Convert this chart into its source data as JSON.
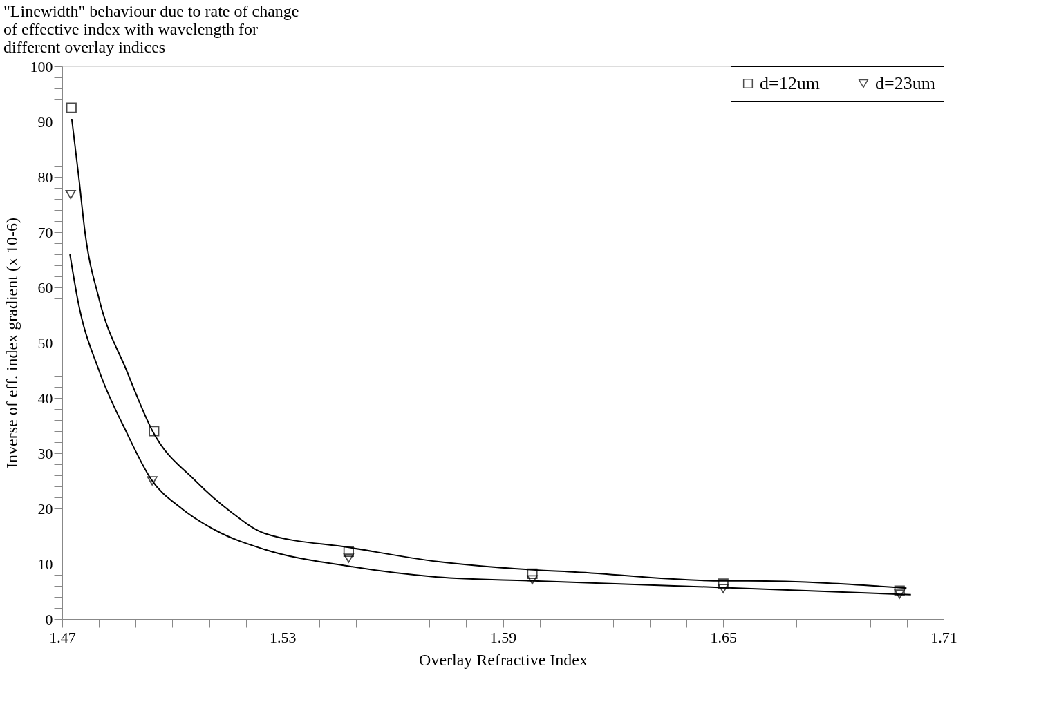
{
  "chart_data": {
    "type": "scatter",
    "title": [
      "\"Linewidth\" behaviour due to rate of change",
      "of effective index with wavelength for",
      "different overlay indices"
    ],
    "xlabel": "Overlay Refractive Index",
    "ylabel": "Inverse of eff. index gradient (x 10-6)",
    "xlim": [
      1.47,
      1.71
    ],
    "xticks": [
      1.47,
      {
        "value": 1.48,
        "label": null
      },
      {
        "value": 1.49,
        "label": null
      },
      {
        "value": 1.5,
        "label": null
      },
      {
        "value": 1.51,
        "label": null
      },
      {
        "value": 1.52,
        "label": null
      },
      1.53,
      {
        "value": 1.54,
        "label": null
      },
      {
        "value": 1.55,
        "label": null
      },
      {
        "value": 1.56,
        "label": null
      },
      {
        "value": 1.57,
        "label": null
      },
      {
        "value": 1.58,
        "label": null
      },
      1.59,
      {
        "value": 1.6,
        "label": null
      },
      {
        "value": 1.61,
        "label": null
      },
      {
        "value": 1.62,
        "label": null
      },
      {
        "value": 1.63,
        "label": null
      },
      {
        "value": 1.64,
        "label": null
      },
      1.65,
      {
        "value": 1.66,
        "label": null
      },
      {
        "value": 1.67,
        "label": null
      },
      {
        "value": 1.68,
        "label": null
      },
      {
        "value": 1.69,
        "label": null
      },
      {
        "value": 1.7,
        "label": null
      },
      1.71
    ],
    "ylim": [
      0,
      100
    ],
    "yticks": [
      0,
      {
        "value": 2,
        "label": null
      },
      {
        "value": 4,
        "label": null
      },
      {
        "value": 6,
        "label": null
      },
      {
        "value": 8,
        "label": null
      },
      10,
      {
        "value": 12,
        "label": null
      },
      {
        "value": 14,
        "label": null
      },
      {
        "value": 16,
        "label": null
      },
      {
        "value": 18,
        "label": null
      },
      20,
      {
        "value": 22,
        "label": null
      },
      {
        "value": 24,
        "label": null
      },
      {
        "value": 26,
        "label": null
      },
      {
        "value": 28,
        "label": null
      },
      30,
      {
        "value": 32,
        "label": null
      },
      {
        "value": 34,
        "label": null
      },
      {
        "value": 36,
        "label": null
      },
      {
        "value": 38,
        "label": null
      },
      40,
      {
        "value": 42,
        "label": null
      },
      {
        "value": 44,
        "label": null
      },
      {
        "value": 46,
        "label": null
      },
      {
        "value": 48,
        "label": null
      },
      50,
      {
        "value": 52,
        "label": null
      },
      {
        "value": 54,
        "label": null
      },
      {
        "value": 56,
        "label": null
      },
      {
        "value": 58,
        "label": null
      },
      60,
      {
        "value": 62,
        "label": null
      },
      {
        "value": 64,
        "label": null
      },
      {
        "value": 66,
        "label": null
      },
      {
        "value": 68,
        "label": null
      },
      70,
      {
        "value": 72,
        "label": null
      },
      {
        "value": 74,
        "label": null
      },
      {
        "value": 76,
        "label": null
      },
      {
        "value": 78,
        "label": null
      },
      80,
      {
        "value": 82,
        "label": null
      },
      {
        "value": 84,
        "label": null
      },
      {
        "value": 86,
        "label": null
      },
      {
        "value": 88,
        "label": null
      },
      90,
      {
        "value": 92,
        "label": null
      },
      {
        "value": 94,
        "label": null
      },
      {
        "value": 96,
        "label": null
      },
      {
        "value": 98,
        "label": null
      },
      100
    ],
    "grid": false,
    "legend": "top right",
    "series": [
      {
        "name": "d=12um",
        "marker": "square",
        "color": "#000000",
        "x": [
          1.4725,
          1.495,
          1.548,
          1.598,
          1.65,
          1.698
        ],
        "values": [
          92.5,
          34,
          12.2,
          8.2,
          6.4,
          5.1
        ]
      },
      {
        "name": "d=23um",
        "marker": "triangle",
        "color": "#000000",
        "x": [
          1.4723,
          1.4945,
          1.548,
          1.598,
          1.65,
          1.698
        ],
        "values": [
          76.8,
          25,
          11,
          7.1,
          5.5,
          4.5
        ]
      },
      {
        "type": "line",
        "marker": "none",
        "color": "#000000",
        "x": [
          1.4726,
          1.4745,
          1.4762,
          1.48,
          1.4875,
          1.4946,
          1.5063,
          1.5157,
          1.5251,
          1.5486,
          1.5721,
          1.5982,
          1.6097,
          1.6501,
          1.6567,
          1.6999
        ],
        "values": [
          90.5,
          80,
          70,
          58,
          45,
          34,
          25,
          19.5,
          15.5,
          12.9,
          10.4,
          8.9,
          8.5,
          6.9,
          6.9,
          5.6
        ]
      },
      {
        "type": "line",
        "marker": "none",
        "color": "#000000",
        "x": [
          1.4721,
          1.4743,
          1.48,
          1.4875,
          1.4942,
          1.5025,
          1.5119,
          1.5251,
          1.5486,
          1.5721,
          1.5982,
          1.6501,
          1.7011
        ],
        "values": [
          66,
          57.5,
          45,
          33.8,
          25.3,
          20,
          16,
          12.6,
          9.5,
          7.6,
          6.9,
          5.7,
          4.4
        ]
      }
    ]
  }
}
